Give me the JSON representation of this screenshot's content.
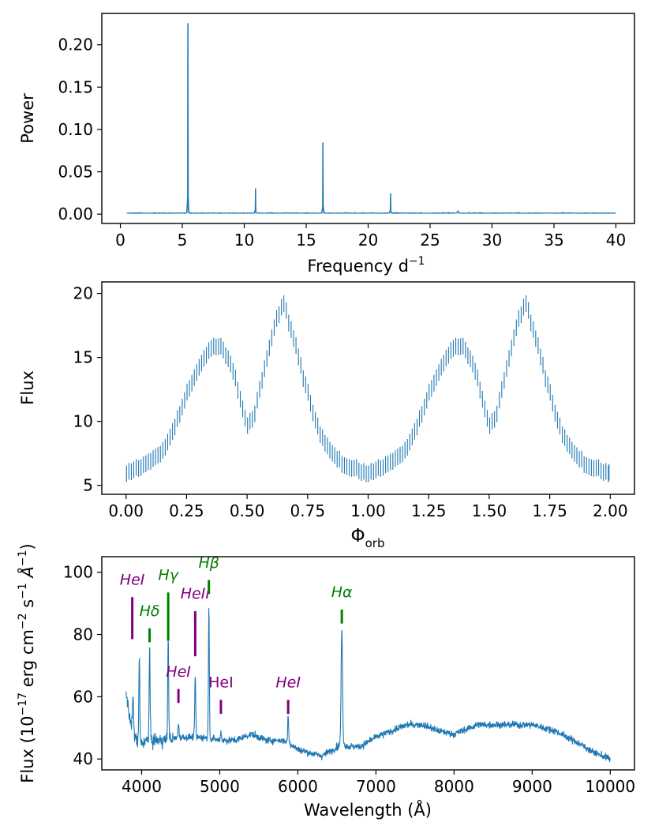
{
  "chart_data": [
    {
      "type": "line",
      "title": "",
      "xlabel": "Frequency d",
      "xlabel_sup": "−1",
      "ylabel": "Power",
      "xlim": [
        -1.5,
        41.5
      ],
      "ylim": [
        -0.011,
        0.237
      ],
      "xticks": [
        0,
        5,
        10,
        15,
        20,
        25,
        30,
        35,
        40
      ],
      "xtick_labels": [
        "0",
        "5",
        "10",
        "15",
        "20",
        "25",
        "30",
        "35",
        "40"
      ],
      "yticks": [
        0.0,
        0.05,
        0.1,
        0.15,
        0.2
      ],
      "ytick_labels": [
        "0.00",
        "0.05",
        "0.10",
        "0.15",
        "0.20"
      ],
      "baseline": 0.001,
      "x_range": [
        0.5,
        40
      ],
      "peaks": [
        {
          "x": 5.45,
          "y": 0.225
        },
        {
          "x": 10.9,
          "y": 0.03
        },
        {
          "x": 16.35,
          "y": 0.084
        },
        {
          "x": 21.8,
          "y": 0.024
        },
        {
          "x": 27.25,
          "y": 0.004
        }
      ]
    },
    {
      "type": "scatter",
      "title": "",
      "xlabel": "Φ",
      "xlabel_sub": "orb",
      "ylabel": "Flux",
      "xlim": [
        -0.1,
        2.1
      ],
      "ylim": [
        4.3,
        20.9
      ],
      "xticks": [
        0.0,
        0.25,
        0.5,
        0.75,
        1.0,
        1.25,
        1.5,
        1.75,
        2.0
      ],
      "xtick_labels": [
        "0.00",
        "0.25",
        "0.50",
        "0.75",
        "1.00",
        "1.25",
        "1.50",
        "1.75",
        "2.00"
      ],
      "yticks": [
        5,
        10,
        15,
        20
      ],
      "ytick_labels": [
        "5",
        "10",
        "15",
        "20"
      ],
      "error_half_width": 0.65,
      "n_points_per_cycle": 100,
      "light_curve_phase": [
        0.0,
        0.05,
        0.1,
        0.15,
        0.2,
        0.25,
        0.3,
        0.35,
        0.39,
        0.43,
        0.47,
        0.5,
        0.53,
        0.57,
        0.61,
        0.65,
        0.7,
        0.75,
        0.8,
        0.85,
        0.9,
        0.95,
        1.0
      ],
      "light_curve_flux": [
        6.0,
        6.4,
        6.9,
        7.6,
        9.5,
        12.0,
        14.2,
        15.7,
        16.0,
        14.7,
        12.0,
        9.6,
        10.5,
        14.0,
        17.2,
        19.3,
        16.0,
        12.2,
        9.0,
        7.5,
        6.6,
        6.2,
        6.0
      ]
    },
    {
      "type": "line",
      "title": "",
      "xlabel": "Wavelength (Å)",
      "ylabel_parts": [
        "Flux (10",
        "−17",
        " erg cm",
        "−2",
        " s",
        "−1",
        " Å",
        "−1",
        ")"
      ],
      "xlim": [
        3490,
        10310
      ],
      "ylim": [
        36.5,
        105.0
      ],
      "xticks": [
        4000,
        5000,
        6000,
        7000,
        8000,
        9000,
        10000
      ],
      "xtick_labels": [
        "4000",
        "5000",
        "6000",
        "7000",
        "8000",
        "9000",
        "10000"
      ],
      "yticks": [
        40,
        60,
        80,
        100
      ],
      "ytick_labels": [
        "40",
        "60",
        "80",
        "100"
      ],
      "continuum_w": [
        3800,
        3850,
        3950,
        4100,
        4300,
        4500,
        4800,
        5000,
        5200,
        5400,
        5600,
        5800,
        5900,
        6000,
        6150,
        6300,
        6450,
        6560,
        6650,
        6800,
        7000,
        7200,
        7400,
        7600,
        7800,
        8000,
        8300,
        8600,
        9000,
        9300,
        9600,
        9800,
        10000
      ],
      "continuum_f": [
        62,
        52,
        45,
        46,
        46,
        47,
        47,
        46,
        46,
        48,
        46,
        46,
        45,
        43,
        42,
        41,
        43,
        45,
        44,
        44,
        47,
        49,
        51,
        51,
        49,
        48,
        51,
        51,
        51,
        49,
        45,
        42,
        40
      ],
      "emission_lines": [
        {
          "w": 3889,
          "h": 12
        },
        {
          "w": 3970,
          "h": 28
        },
        {
          "w": 4102,
          "h": 30
        },
        {
          "w": 4340,
          "h": 33
        },
        {
          "w": 4471,
          "h": 5
        },
        {
          "w": 4686,
          "h": 20
        },
        {
          "w": 4861,
          "h": 42
        },
        {
          "w": 5015,
          "h": 3
        },
        {
          "w": 5876,
          "h": 9
        },
        {
          "w": 6563,
          "h": 37
        }
      ],
      "annotations": [
        {
          "label": "HeI",
          "w": 3880,
          "y_top": 92,
          "y_bot": 78.5,
          "text_y": 96,
          "color": "#800080",
          "italic": true
        },
        {
          "label": "Hδ",
          "w": 4102,
          "y_top": 82,
          "y_bot": 77.5,
          "text_y": 86,
          "color": "#008000",
          "italic": true
        },
        {
          "label": "Hγ",
          "w": 4340,
          "y_top": 93.5,
          "y_bot": 78,
          "text_y": 97.5,
          "color": "#008000",
          "italic": true
        },
        {
          "label": "HeII",
          "w": 4686,
          "y_top": 87.5,
          "y_bot": 73,
          "text_y": 91.5,
          "color": "#800080",
          "italic": true
        },
        {
          "label": "Hβ",
          "w": 4861,
          "y_top": 97.5,
          "y_bot": 93,
          "text_y": 101.5,
          "color": "#008000",
          "italic": true
        },
        {
          "label": "HeI",
          "w": 4471,
          "y_top": 62.5,
          "y_bot": 58,
          "text_y": 66.5,
          "color": "#800080",
          "italic": true
        },
        {
          "label": "HeI",
          "w": 5015,
          "y_top": 59,
          "y_bot": 54.5,
          "text_y": 63,
          "color": "#800080",
          "italic": false
        },
        {
          "label": "HeI",
          "w": 5876,
          "y_top": 59,
          "y_bot": 54.5,
          "text_y": 63,
          "color": "#800080",
          "italic": true
        },
        {
          "label": "Hα",
          "w": 6563,
          "y_top": 88,
          "y_bot": 83.5,
          "text_y": 92,
          "color": "#008000",
          "italic": true
        }
      ]
    }
  ]
}
